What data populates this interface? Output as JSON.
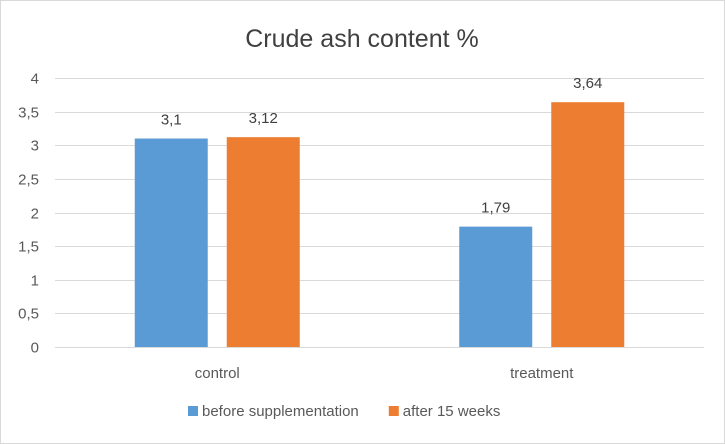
{
  "chart_data": {
    "type": "bar",
    "title": "Crude ash content %",
    "categories": [
      "control",
      "treatment"
    ],
    "series": [
      {
        "name": "before supplementation",
        "color": "#5b9bd5",
        "values": [
          3.1,
          1.79
        ],
        "labels": [
          "3,1",
          "1,79"
        ]
      },
      {
        "name": "after 15 weeks",
        "color": "#ed7d31",
        "values": [
          3.12,
          3.64
        ],
        "labels": [
          "3,12",
          "3,64"
        ]
      }
    ],
    "ylim": [
      0,
      4
    ],
    "yticks": [
      0,
      0.5,
      1,
      1.5,
      2,
      2.5,
      3,
      3.5,
      4
    ],
    "ytick_labels": [
      "0",
      "0,5",
      "1",
      "1,5",
      "2",
      "2,5",
      "3",
      "3,5",
      "4"
    ],
    "grid": true,
    "legend_position": "bottom",
    "xlabel": "",
    "ylabel": ""
  }
}
